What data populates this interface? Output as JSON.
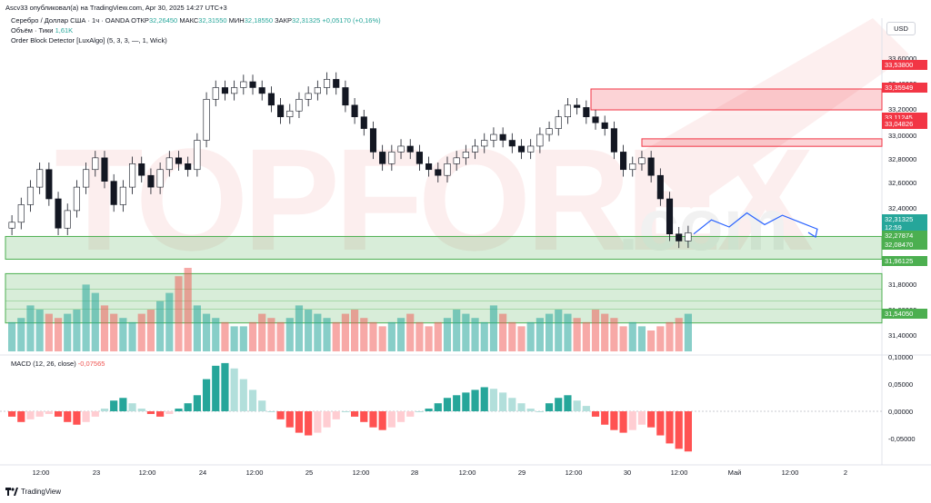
{
  "header": {
    "published": "Ascv33 опубликовал(а) на TradingView.com, Apr 30, 2025 14:27 UTC+3"
  },
  "legend": {
    "symbol": "Серебро / Доллар США · 1ч · OANDA",
    "open_label": "ОТКР",
    "open": "32,26450",
    "high_label": "МАКС",
    "high": "32,31550",
    "low_label": "МИН",
    "low": "32,18550",
    "close_label": "ЗАКР",
    "close": "32,31325",
    "change": "+0,05170 (+0,16%)",
    "volume_label": "Объём · Тики",
    "volume_value": "1,61K",
    "indicator": "Order Block Detector [LuxAlgo] (5, 3, 3, —, 1, Wick)"
  },
  "currency_button": "USD",
  "price_axis": {
    "ticks": [
      "33,60000",
      "33,40000",
      "33,20000",
      "33,00000",
      "32,80000",
      "32,60000",
      "32,40000",
      "32,00000",
      "31,80000",
      "31,60000",
      "31,40000"
    ],
    "tags": [
      {
        "text": "33,53800",
        "color": "#f23645"
      },
      {
        "text": "33,35949",
        "color": "#f23645"
      },
      {
        "text": "33,11245",
        "color": "#f23645"
      },
      {
        "text": "33,04826",
        "color": "#f23645"
      },
      {
        "text": "32,31325",
        "color": "#26a69a"
      },
      {
        "text": "12:59",
        "color": "#26a69a"
      },
      {
        "text": "32,27874",
        "color": "#4caf50"
      },
      {
        "text": "32,08470",
        "color": "#4caf50"
      },
      {
        "text": "31,96125",
        "color": "#4caf50"
      },
      {
        "text": "31,54050",
        "color": "#4caf50"
      }
    ]
  },
  "macd": {
    "label": "MACD (12, 26, close)",
    "value": "-0,07565",
    "ticks": [
      "0,10000",
      "0,05000",
      "0,00000",
      "-0,05000"
    ]
  },
  "time_axis": {
    "ticks": [
      "12:00",
      "23",
      "12:00",
      "24",
      "12:00",
      "25",
      "12:00",
      "28",
      "12:00",
      "29",
      "12:00",
      "30",
      "12:00",
      "Май",
      "12:00",
      "2"
    ]
  },
  "watermark": "TOPFOREX.com",
  "footer": {
    "brand": "TradingView"
  },
  "colors": {
    "up": "#26a69a",
    "down": "#ef5350",
    "bear_block": "#f23645",
    "bull_block": "#4caf50",
    "projection": "#2962ff"
  },
  "chart_data": {
    "type": "candlestick",
    "symbol": "XAGUSD",
    "interval": "1h",
    "ylim": [
      31.4,
      33.7
    ],
    "price_series_approx": [
      32.4,
      32.55,
      32.7,
      32.85,
      32.6,
      32.35,
      32.5,
      32.7,
      32.85,
      32.95,
      32.75,
      32.55,
      32.7,
      32.9,
      32.8,
      32.7,
      32.85,
      32.95,
      32.9,
      32.85,
      33.1,
      33.45,
      33.55,
      33.5,
      33.55,
      33.6,
      33.55,
      33.5,
      33.4,
      33.3,
      33.35,
      33.45,
      33.5,
      33.55,
      33.62,
      33.55,
      33.4,
      33.3,
      33.2,
      33.0,
      32.9,
      33.0,
      33.05,
      33.0,
      32.9,
      32.85,
      32.8,
      32.9,
      32.95,
      33.0,
      33.05,
      33.1,
      33.15,
      33.1,
      33.05,
      33.0,
      33.05,
      33.15,
      33.2,
      33.3,
      33.4,
      33.38,
      33.3,
      33.25,
      33.2,
      33.0,
      32.85,
      32.9,
      32.95,
      32.8,
      32.6,
      32.3,
      32.24,
      32.31
    ],
    "order_blocks": {
      "bearish": [
        [
          33.35949,
          33.538
        ],
        [
          33.04826,
          33.11245
        ]
      ],
      "bullish": [
        [
          32.0847,
          32.27874
        ],
        [
          31.5405,
          31.96125
        ]
      ]
    },
    "projection_path": [
      32.3,
      32.42,
      32.36,
      32.48,
      32.38,
      32.46,
      32.4,
      32.34
    ],
    "macd_ylim": [
      -0.07,
      0.11
    ],
    "macd_hist_approx": [
      -0.01,
      -0.02,
      -0.015,
      -0.01,
      -0.005,
      -0.01,
      -0.02,
      -0.025,
      -0.02,
      -0.01,
      0.005,
      0.02,
      0.025,
      0.015,
      0.005,
      -0.005,
      -0.01,
      -0.005,
      0.005,
      0.015,
      0.03,
      0.06,
      0.085,
      0.09,
      0.08,
      0.06,
      0.04,
      0.02,
      0.0,
      -0.015,
      -0.03,
      -0.04,
      -0.045,
      -0.04,
      -0.03,
      -0.015,
      0.0,
      -0.01,
      -0.02,
      -0.03,
      -0.035,
      -0.03,
      -0.02,
      -0.01,
      0.0,
      0.005,
      0.015,
      0.025,
      0.03,
      0.035,
      0.04,
      0.045,
      0.042,
      0.035,
      0.025,
      0.015,
      0.005,
      0.0,
      0.015,
      0.025,
      0.03,
      0.02,
      0.01,
      -0.01,
      -0.025,
      -0.035,
      -0.04,
      -0.035,
      -0.025,
      -0.03,
      -0.045,
      -0.06,
      -0.07,
      -0.075
    ],
    "volume_approx": [
      0.35,
      0.4,
      0.55,
      0.5,
      0.45,
      0.4,
      0.45,
      0.5,
      0.8,
      0.7,
      0.55,
      0.45,
      0.4,
      0.35,
      0.45,
      0.5,
      0.6,
      0.7,
      0.9,
      1.0,
      0.55,
      0.45,
      0.4,
      0.35,
      0.3,
      0.3,
      0.35,
      0.45,
      0.4,
      0.35,
      0.4,
      0.55,
      0.5,
      0.45,
      0.4,
      0.35,
      0.45,
      0.5,
      0.4,
      0.35,
      0.3,
      0.35,
      0.4,
      0.45,
      0.35,
      0.3,
      0.35,
      0.4,
      0.5,
      0.45,
      0.4,
      0.35,
      0.55,
      0.45,
      0.35,
      0.3,
      0.35,
      0.4,
      0.45,
      0.5,
      0.45,
      0.4,
      0.35,
      0.5,
      0.45,
      0.4,
      0.3,
      0.35,
      0.3,
      0.25,
      0.3,
      0.35,
      0.4,
      0.45
    ]
  }
}
